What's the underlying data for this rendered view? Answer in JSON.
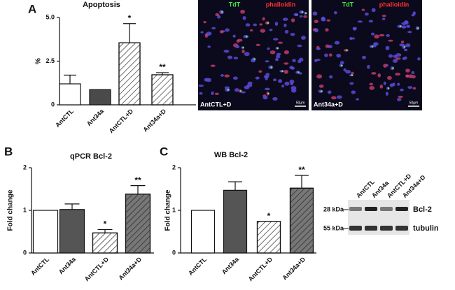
{
  "panels": [
    "A",
    "B",
    "C"
  ],
  "chart_data": [
    {
      "type": "bar",
      "title": "Apoptosis",
      "y_label": "%",
      "categories": [
        "AntCTL",
        "Ant34a",
        "AntCTL+D",
        "Ant34a+D"
      ],
      "values": [
        1.2,
        0.87,
        3.55,
        1.72
      ],
      "errors": [
        0.5,
        null,
        1.1,
        0.12
      ],
      "annotations": [
        null,
        null,
        "*",
        "**"
      ],
      "colors": [
        "#ffffff",
        "#4a4a4a",
        "#ffffff",
        "#ffffff"
      ],
      "hatch": [
        false,
        false,
        true,
        true
      ],
      "ylim": [
        0,
        5
      ],
      "yticks": [
        0,
        2.5,
        {
          "value": 5,
          "label": "5.0"
        }
      ]
    },
    {
      "type": "bar",
      "title": "qPCR Bcl-2",
      "y_label": "Fold change",
      "categories": [
        "AntCTL",
        "Ant34a",
        "AntCTL+D",
        "Ant34a+D"
      ],
      "values": [
        1.0,
        1.02,
        0.47,
        1.38
      ],
      "errors": [
        null,
        0.13,
        0.08,
        0.2
      ],
      "annotations": [
        null,
        null,
        "*",
        "**"
      ],
      "colors": [
        "#ffffff",
        "#555555",
        "#ffffff",
        "#777777"
      ],
      "hatch": [
        false,
        false,
        true,
        true
      ],
      "ylim": [
        0,
        2
      ],
      "yticks": [
        0,
        1,
        2
      ]
    },
    {
      "type": "bar",
      "title": "WB Bcl-2",
      "y_label": "Fold change",
      "categories": [
        "AntCTL",
        "Ant34a",
        "AntCTL+D",
        "Ant34a+D"
      ],
      "values": [
        1.0,
        1.47,
        0.74,
        1.52
      ],
      "errors": [
        null,
        0.2,
        null,
        0.3
      ],
      "annotations": [
        null,
        null,
        "*",
        "**"
      ],
      "colors": [
        "#ffffff",
        "#555555",
        "#ffffff",
        "#777777"
      ],
      "hatch": [
        false,
        false,
        true,
        true
      ],
      "ylim": [
        0,
        2
      ],
      "yticks": [
        0,
        1,
        2
      ]
    }
  ],
  "images": [
    {
      "stain1": "TdT",
      "stain2": "phalloidin",
      "caption": "AntCTL+D",
      "scale": "50µm"
    },
    {
      "stain1": "TdT",
      "stain2": "phalloidin",
      "caption": "Ant34a+D",
      "scale": "50µm"
    }
  ],
  "blot": {
    "lanes": [
      "AntCTL",
      "Ant34a",
      "AntCTL+D",
      "Ant34a+D"
    ],
    "markers": [
      "28 kDa",
      "55 kDa"
    ],
    "bands": [
      "Bcl-2",
      "tubulin"
    ]
  }
}
